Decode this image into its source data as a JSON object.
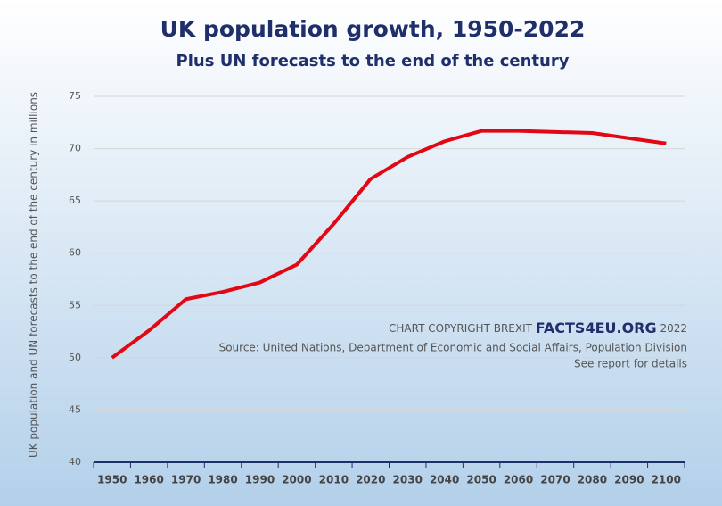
{
  "chart_data": {
    "type": "line",
    "title": "UK population growth, 1950-2022",
    "subtitle": "Plus UN forecasts to the end of the century",
    "y_label": "UK population and UN forecasts to the end of the century in millions",
    "annotation": {
      "prefix": "CHART COPYRIGHT BREXIT",
      "brand": "FACTS4EU.ORG",
      "year": "2022",
      "source": "Source: United Nations, Department of Economic and Social Affairs, Population Division",
      "note": "See report for details"
    },
    "categories": [
      "1950",
      "1960",
      "1970",
      "1980",
      "1990",
      "2000",
      "2010",
      "2020",
      "2030",
      "2040",
      "2050",
      "2060",
      "2070",
      "2080",
      "2090",
      "2100"
    ],
    "values": [
      50.0,
      52.6,
      55.6,
      56.3,
      57.2,
      58.9,
      62.8,
      67.1,
      69.2,
      70.7,
      71.7,
      71.7,
      71.6,
      71.5,
      71.0,
      70.5
    ],
    "color": "#e30613",
    "ylim": [
      40,
      75
    ],
    "yticks": [
      40,
      45,
      50,
      55,
      60,
      65,
      70,
      75
    ],
    "grid": true
  }
}
